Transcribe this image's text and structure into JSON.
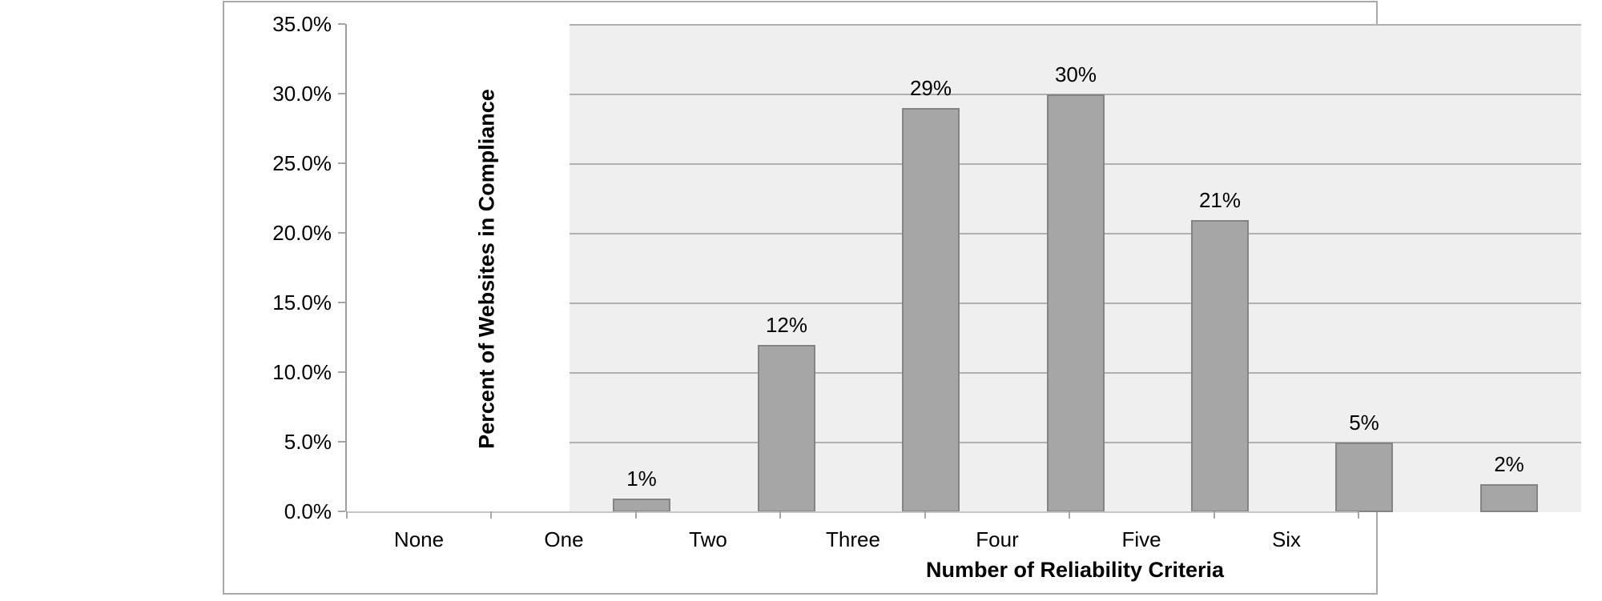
{
  "figure": {
    "background": "#FFFFFF",
    "border_color": "#A9A9A9"
  },
  "chart_data": {
    "type": "bar",
    "title": "",
    "categories": [
      "None",
      "One",
      "Two",
      "Three",
      "Four",
      "Five",
      "Six"
    ],
    "values": [
      1,
      12,
      29,
      30,
      21,
      5,
      2
    ],
    "data_labels": [
      "1%",
      "12%",
      "29%",
      "30%",
      "21%",
      "5%",
      "2%"
    ],
    "xlabel": "Number of Reliability Criteria",
    "ylabel": "Percent of Websites in Compliance",
    "ylim": [
      0,
      35
    ],
    "ytick_values": [
      0,
      5,
      10,
      15,
      20,
      25,
      30,
      35
    ],
    "ytick_labels": [
      "0.0%",
      "5.0%",
      "10.0%",
      "15.0%",
      "20.0%",
      "25.0%",
      "30.0%",
      "35.0%"
    ],
    "grid": true,
    "legend": "none",
    "colors": {
      "plot_background": "#EFEFEF",
      "gridline": "#B0B0B0",
      "bar_fill": "#A6A6A6",
      "bar_border": "#848484",
      "y_axis_line": "#9E9E9E",
      "x_baseline": "#C6C6C6",
      "tick": "#A6A6A6",
      "text": "#000000"
    }
  }
}
